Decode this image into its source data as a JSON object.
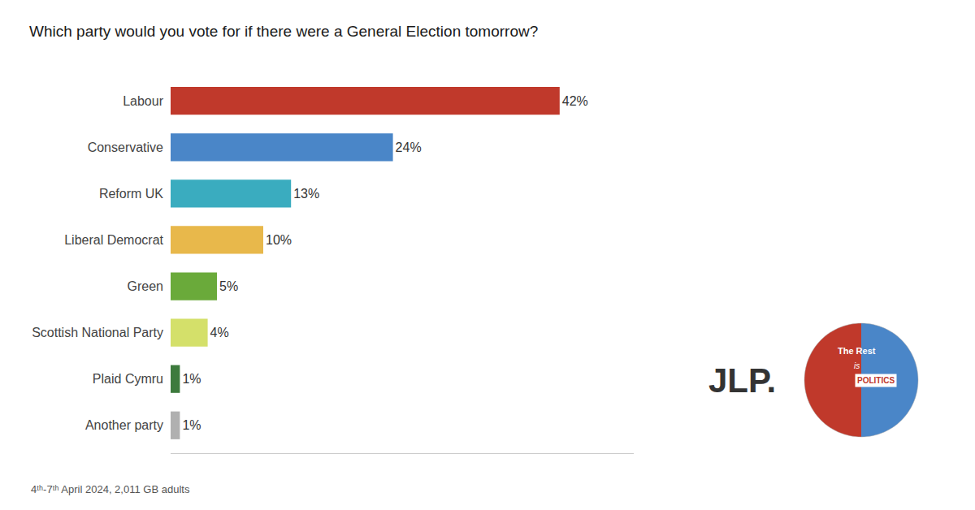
{
  "chart_data": {
    "type": "bar",
    "orientation": "horizontal",
    "title": "Which party would you vote for if there were a General Election tomorrow?",
    "categories": [
      "Labour",
      "Conservative",
      "Reform UK",
      "Liberal Democrat",
      "Green",
      "Scottish National Party",
      "Plaid Cymru",
      "Another party"
    ],
    "values": [
      42,
      24,
      13,
      10,
      5,
      4,
      1,
      1
    ],
    "value_labels": [
      "42%",
      "24%",
      "13%",
      "10%",
      "5%",
      "4%",
      "1%",
      "1%"
    ],
    "colors": [
      "#c0392b",
      "#4a86c8",
      "#3aacbf",
      "#e8b84b",
      "#6aaa3a",
      "#d4e06a",
      "#3d7a3d",
      "#b0b0b0"
    ],
    "data_labels": true,
    "xlim": [
      0,
      50
    ],
    "xticks": [],
    "grid": false,
    "tick_labels": "y",
    "annotations": [
      "4ᵗʰ-7ᵗʰ April 2024, 2,011 GB adults",
      "JLP.",
      "The Rest",
      "is",
      "POLITICS"
    ]
  }
}
